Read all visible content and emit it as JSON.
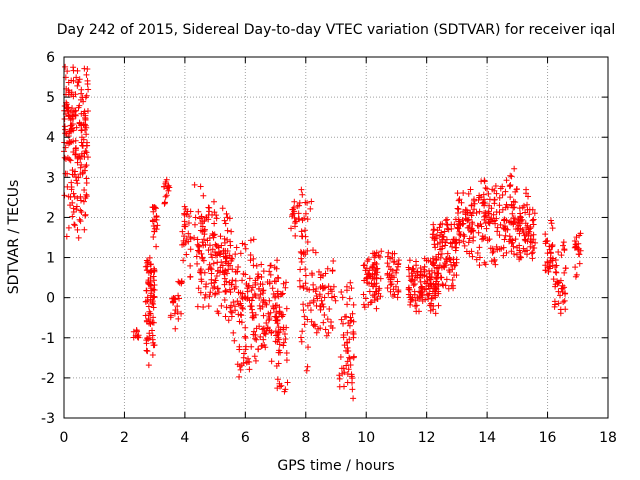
{
  "chart_data": {
    "type": "scatter",
    "title": "Day 242 of 2015, Sidereal Day-to-day VTEC variation (SDTVAR) for receiver iqal",
    "xlabel": "GPS time / hours",
    "ylabel": "SDTVAR / TECUs",
    "xlim": [
      0,
      18
    ],
    "ylim": [
      -3,
      6
    ],
    "xticks": [
      0,
      2,
      4,
      6,
      8,
      10,
      12,
      14,
      16,
      18
    ],
    "yticks": [
      -3,
      -2,
      -1,
      0,
      1,
      2,
      3,
      4,
      5,
      6
    ],
    "grid": true,
    "marker": "+",
    "series": [
      {
        "name": "SDTVAR",
        "color": "#ff0000",
        "clusters": [
          {
            "x": [
              0.0,
              0.8
            ],
            "y": [
              1.3,
              5.8
            ],
            "center": 3.8,
            "n": 200
          },
          {
            "x": [
              2.3,
              2.5
            ],
            "y": [
              -1.0,
              -0.7
            ],
            "center": -0.9,
            "n": 10
          },
          {
            "x": [
              2.7,
              3.0
            ],
            "y": [
              -1.7,
              1.0
            ],
            "center": 0.0,
            "n": 80
          },
          {
            "x": [
              2.9,
              3.1
            ],
            "y": [
              1.2,
              2.4
            ],
            "center": 1.9,
            "n": 20
          },
          {
            "x": [
              3.3,
              3.5
            ],
            "y": [
              2.3,
              3.0
            ],
            "center": 2.7,
            "n": 15
          },
          {
            "x": [
              3.5,
              3.9
            ],
            "y": [
              -1.1,
              0.5
            ],
            "center": 0.0,
            "n": 25
          },
          {
            "x": [
              3.9,
              4.2
            ],
            "y": [
              0.5,
              2.3
            ],
            "center": 1.5,
            "n": 30
          },
          {
            "x": [
              4.3,
              5.0
            ],
            "y": [
              -0.3,
              2.9
            ],
            "center": 1.0,
            "n": 90
          },
          {
            "x": [
              5.0,
              5.6
            ],
            "y": [
              -0.6,
              2.3
            ],
            "center": 0.8,
            "n": 90
          },
          {
            "x": [
              5.6,
              6.3
            ],
            "y": [
              -2.0,
              1.5
            ],
            "center": -0.3,
            "n": 90
          },
          {
            "x": [
              6.3,
              7.1
            ],
            "y": [
              -1.6,
              1.0
            ],
            "center": -0.2,
            "n": 100
          },
          {
            "x": [
              7.0,
              7.4
            ],
            "y": [
              -2.6,
              0.8
            ],
            "center": -1.0,
            "n": 50
          },
          {
            "x": [
              7.5,
              7.8
            ],
            "y": [
              1.4,
              2.5
            ],
            "center": 2.0,
            "n": 20
          },
          {
            "x": [
              7.8,
              8.2
            ],
            "y": [
              -1.9,
              2.7
            ],
            "center": 0.5,
            "n": 50
          },
          {
            "x": [
              8.2,
              9.0
            ],
            "y": [
              -1.0,
              1.2
            ],
            "center": 0.0,
            "n": 60
          },
          {
            "x": [
              9.1,
              9.6
            ],
            "y": [
              -2.6,
              0.5
            ],
            "center": -1.0,
            "n": 60
          },
          {
            "x": [
              9.9,
              10.5
            ],
            "y": [
              -0.3,
              1.2
            ],
            "center": 0.5,
            "n": 70
          },
          {
            "x": [
              10.7,
              11.1
            ],
            "y": [
              0.0,
              1.2
            ],
            "center": 0.6,
            "n": 40
          },
          {
            "x": [
              11.4,
              12.4
            ],
            "y": [
              -0.4,
              1.0
            ],
            "center": 0.3,
            "n": 130
          },
          {
            "x": [
              12.2,
              13.0
            ],
            "y": [
              0.2,
              2.0
            ],
            "center": 1.1,
            "n": 110
          },
          {
            "x": [
              13.0,
              13.6
            ],
            "y": [
              1.0,
              2.7
            ],
            "center": 1.9,
            "n": 70
          },
          {
            "x": [
              13.6,
              14.4
            ],
            "y": [
              0.8,
              3.0
            ],
            "center": 1.9,
            "n": 80
          },
          {
            "x": [
              14.4,
              15.0
            ],
            "y": [
              1.0,
              3.3
            ],
            "center": 2.0,
            "n": 70
          },
          {
            "x": [
              15.0,
              15.6
            ],
            "y": [
              0.9,
              2.7
            ],
            "center": 1.7,
            "n": 70
          },
          {
            "x": [
              15.9,
              16.2
            ],
            "y": [
              0.6,
              2.2
            ],
            "center": 1.2,
            "n": 30
          },
          {
            "x": [
              16.2,
              16.6
            ],
            "y": [
              -0.5,
              1.5
            ],
            "center": 0.4,
            "n": 40
          },
          {
            "x": [
              16.9,
              17.1
            ],
            "y": [
              0.5,
              1.7
            ],
            "center": 1.1,
            "n": 20
          }
        ]
      }
    ]
  }
}
